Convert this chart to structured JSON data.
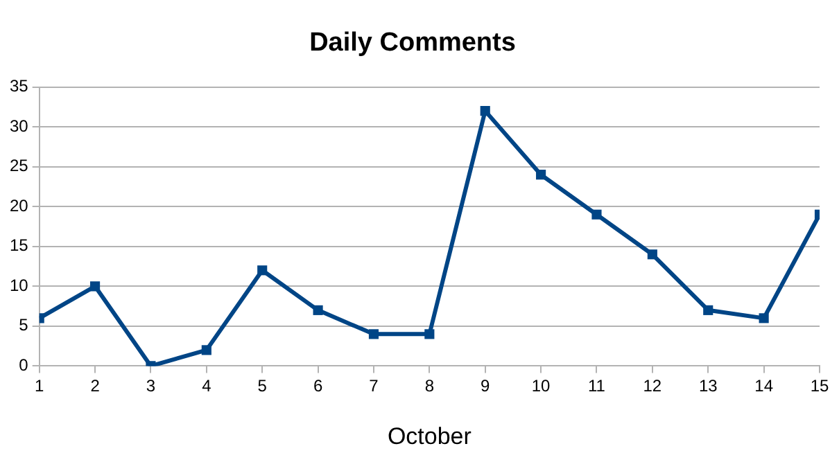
{
  "chart_data": {
    "type": "line",
    "title": "Daily Comments",
    "xlabel": "October",
    "x": [
      1,
      2,
      3,
      4,
      5,
      6,
      7,
      8,
      9,
      10,
      11,
      12,
      13,
      14,
      15
    ],
    "series": [
      {
        "color": "#004586",
        "values": [
          6,
          10,
          0,
          2,
          12,
          7,
          4,
          4,
          32,
          24,
          19,
          14,
          7,
          6,
          19
        ]
      }
    ],
    "xlim": [
      1,
      15
    ],
    "xticks": [
      1,
      2,
      3,
      4,
      5,
      6,
      7,
      8,
      9,
      10,
      11,
      12,
      13,
      14,
      15
    ],
    "ylim": [
      0,
      35
    ],
    "yticks": [
      0,
      5,
      10,
      15,
      20,
      25,
      30,
      35
    ],
    "grid": "y",
    "legend": false,
    "marker": "square",
    "line_style": "solid"
  }
}
